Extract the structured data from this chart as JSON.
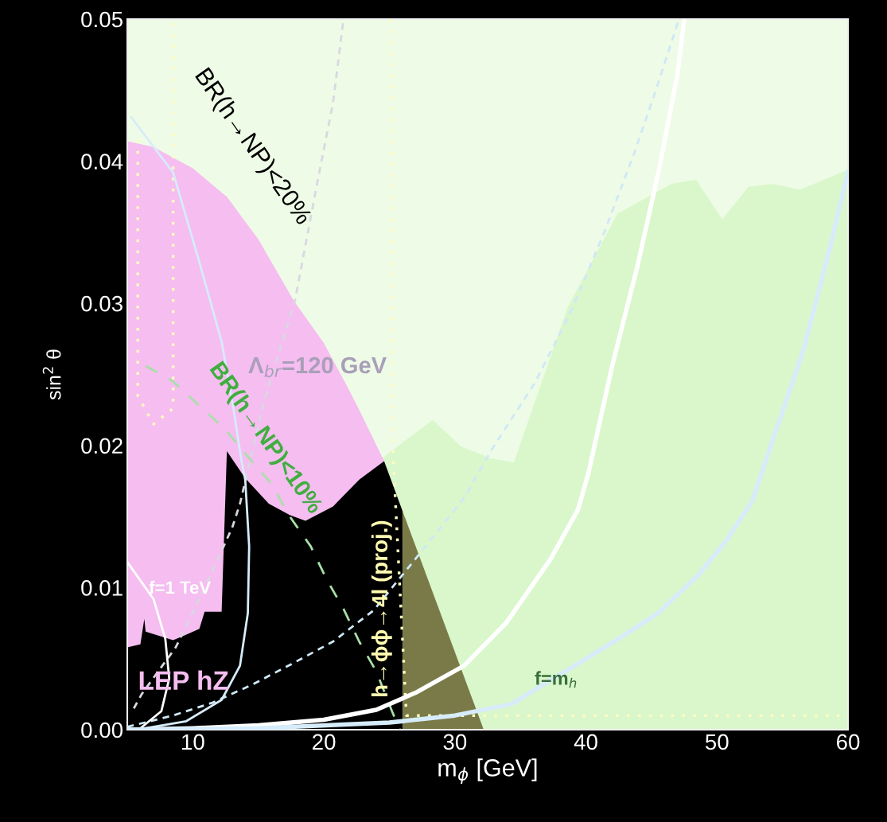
{
  "chart_data": {
    "type": "line",
    "xlabel": "m$_{ϕ}$ [GeV]",
    "ylabel": "sin$^{2}$ θ",
    "xlim": [
      5,
      60
    ],
    "xticks": [
      10,
      20,
      30,
      40,
      50,
      60
    ],
    "ylim": [
      0,
      0.05
    ],
    "yticks": [
      {
        "value": 0,
        "label": "0.00"
      },
      0.01,
      0.02,
      0.03,
      0.04,
      0.05
    ],
    "legend": false,
    "series": [
      {
        "type": "area",
        "color": "#d9f7cb",
        "x": [
          24.3,
          28.3,
          30.5,
          32.2,
          32.6,
          34.5,
          38.6,
          42.4,
          46.5,
          48.4,
          50.4,
          52.4,
          54.3,
          56.3,
          58.2,
          60
        ],
        "values": [
          0.019,
          0.0218,
          0.0199,
          0.0193,
          0.0191,
          0.0188,
          0.0297,
          0.0363,
          0.0384,
          0.0387,
          0.0359,
          0.0382,
          0.0384,
          0.038,
          0.0387,
          0.0394
        ]
      },
      {
        "type": "area",
        "color": "#f5bdf0",
        "x": [
          5,
          7,
          10,
          12.2,
          12.6,
          15,
          17.7,
          20,
          21.7,
          22.7,
          24.6
        ],
        "values": [
          0.0414,
          0.041,
          0.0395,
          0.0378,
          0.0375,
          0.0345,
          0.0302,
          0.0272,
          0.0243,
          0.0225,
          0.0189
        ]
      },
      {
        "type": "area",
        "color": "#000000",
        "x": [
          5,
          6.0,
          6.3,
          6.4,
          8.5,
          9.3,
          10.5,
          10.9,
          12.2,
          12.6,
          14.0,
          15.8,
          17.4,
          18.6,
          20.7,
          22.7,
          24.6,
          26
        ],
        "values": [
          0.0058,
          0.006,
          0.0078,
          0.0069,
          0.0063,
          0.0066,
          0.0071,
          0.0083,
          0.0083,
          0.0196,
          0.0177,
          0.0159,
          0.0151,
          0.0147,
          0.0157,
          0.0176,
          0.0189,
          0.0154
        ]
      },
      {
        "type": "area",
        "color": "#7a7a48",
        "x": [
          26,
          32.2
        ],
        "values": [
          0.0154,
          0
        ]
      },
      {
        "color": "#fffac0",
        "line_style": "dotted",
        "x": [
          5.8,
          5.8,
          7.0,
          8.5,
          8.5
        ],
        "values": [
          0.0415,
          0.0235,
          0.0215,
          0.0226,
          0.05
        ]
      },
      {
        "color": "#fffac0",
        "line_style": "dotted",
        "x": [
          25.1,
          25.3,
          26.3,
          60
        ],
        "values": [
          0.05,
          0.019,
          0.001,
          0.001
        ]
      },
      {
        "color": "#d8d8e2",
        "line_style": "dashed",
        "x": [
          5.5,
          6.1,
          8.7,
          10.5,
          13.0,
          13.6,
          15.4,
          17.8,
          19.5,
          20.7,
          21.5
        ],
        "values": [
          0.0015,
          0.0025,
          0.0058,
          0.0092,
          0.0142,
          0.0159,
          0.023,
          0.0302,
          0.0385,
          0.0441,
          0.05
        ]
      },
      {
        "color": "#a8e0a8",
        "line_style": "longdash",
        "x": [
          6.4,
          8.5,
          10.5,
          12.5,
          14.4,
          16,
          17.4,
          19,
          20.2,
          21.5,
          22.7,
          24,
          25.2,
          25.8
        ],
        "values": [
          0.0256,
          0.0245,
          0.0228,
          0.0211,
          0.019,
          0.0173,
          0.015,
          0.0129,
          0.0106,
          0.0085,
          0.0062,
          0.0041,
          0.0013,
          0
        ]
      },
      {
        "color": "#cfe8f7",
        "line_style": "dashed",
        "x": [
          5,
          8.5,
          11.5,
          14.6,
          17.7,
          20.7,
          23.8,
          26.8,
          30.7,
          32.8,
          36.1,
          38.9,
          41.4,
          43.7,
          45.3,
          47.1
        ],
        "values": [
          0.0002,
          0.001,
          0.0019,
          0.0032,
          0.0047,
          0.0062,
          0.0084,
          0.0118,
          0.0163,
          0.0197,
          0.0244,
          0.0295,
          0.035,
          0.0406,
          0.0449,
          0.05
        ]
      },
      {
        "color": "#d6ecfa",
        "line_style": "solid",
        "x": [
          5.3,
          8.5,
          10.5,
          12.2,
          13.1,
          13.7,
          14.0,
          14.3,
          14.2,
          13.6,
          12.2,
          9.5,
          6.4,
          5
        ],
        "values": [
          0.0431,
          0.0392,
          0.0329,
          0.0273,
          0.0226,
          0.019,
          0.0176,
          0.0129,
          0.0082,
          0.0045,
          0.0021,
          0.0006,
          0.0001,
          0
        ]
      },
      {
        "color": "#ffffff",
        "line_style": "solid",
        "x": [
          5,
          7.0,
          7.9,
          8.2,
          7.6,
          6.0,
          5
        ],
        "values": [
          0.0118,
          0.0092,
          0.0064,
          0.0036,
          0.0013,
          0.0001,
          0
        ]
      },
      {
        "color": "#ffffff",
        "line_style": "solid",
        "x": [
          5,
          10,
          15,
          20,
          24,
          27,
          30.7,
          33.9,
          37.3,
          39.4,
          40.2,
          42.0,
          43.9,
          45.6,
          47.0,
          47.5
        ],
        "values": [
          0,
          0.0001,
          0.0003,
          0.0007,
          0.0014,
          0.0026,
          0.0045,
          0.0075,
          0.012,
          0.0155,
          0.0181,
          0.0256,
          0.0325,
          0.0395,
          0.0462,
          0.05
        ]
      },
      {
        "color": "#d6ecfa",
        "line_style": "solid",
        "x": [
          5,
          15,
          25,
          30,
          34.3,
          38.4,
          42.5,
          45.5,
          48.6,
          50.7,
          52.7,
          54.3,
          56.6,
          58.7,
          60
        ],
        "values": [
          0,
          0.0001,
          0.0005,
          0.001,
          0.0018,
          0.0041,
          0.0064,
          0.0082,
          0.0109,
          0.0133,
          0.0161,
          0.0205,
          0.0267,
          0.0342,
          0.0393
        ]
      }
    ],
    "annotations": [
      "BR(h→NP)<20%",
      "Λ$_{br}$=120 GeV",
      "BR(h→NP)<10%",
      "f=1 TeV",
      "LEP hZ",
      "h→ϕϕ→4l (proj.)",
      "f=m$_{h}$"
    ]
  }
}
